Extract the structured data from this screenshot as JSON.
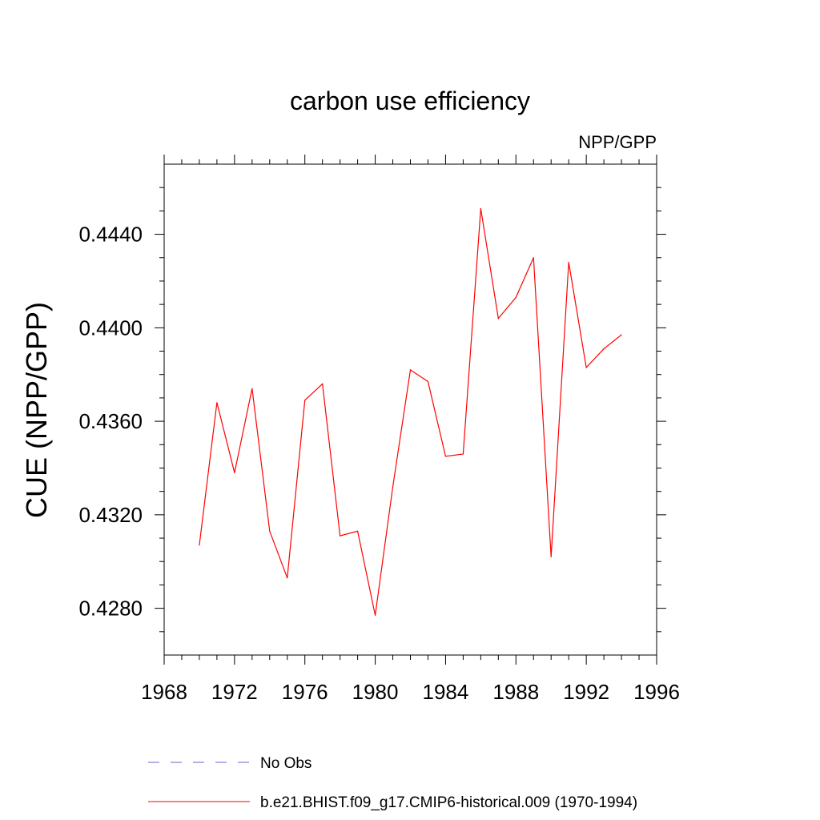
{
  "chart_data": {
    "type": "line",
    "title": "carbon use efficiency",
    "subtitle": "NPP/GPP",
    "xlabel": "",
    "ylabel": "CUE  (NPP/GPP)",
    "xlim": [
      1968,
      1996
    ],
    "ylim": [
      0.426,
      0.447
    ],
    "x_ticks": [
      "1968",
      "1972",
      "1976",
      "1980",
      "1984",
      "1988",
      "1992",
      "1996"
    ],
    "y_ticks": [
      "0.4280",
      "0.4320",
      "0.4360",
      "0.4400",
      "0.4440"
    ],
    "legend_position": "bottom",
    "series": [
      {
        "name": "No Obs",
        "color": "#6666cc",
        "style": "dashed",
        "x": [],
        "values": []
      },
      {
        "name": "b.e21.BHIST.f09_g17.CMIP6-historical.009 (1970-1994)",
        "color": "#ff0000",
        "style": "solid",
        "x": [
          1970,
          1971,
          1972,
          1973,
          1974,
          1975,
          1976,
          1977,
          1978,
          1979,
          1980,
          1981,
          1982,
          1983,
          1984,
          1985,
          1986,
          1987,
          1988,
          1989,
          1990,
          1991,
          1992,
          1993,
          1994
        ],
        "values": [
          0.4307,
          0.4368,
          0.4338,
          0.4374,
          0.4313,
          0.4293,
          0.4369,
          0.4376,
          0.4311,
          0.4313,
          0.4277,
          0.4332,
          0.4382,
          0.4377,
          0.4345,
          0.4346,
          0.4451,
          0.4404,
          0.4413,
          0.443,
          0.4302,
          0.4428,
          0.4383,
          0.4391,
          0.4397
        ]
      }
    ]
  }
}
